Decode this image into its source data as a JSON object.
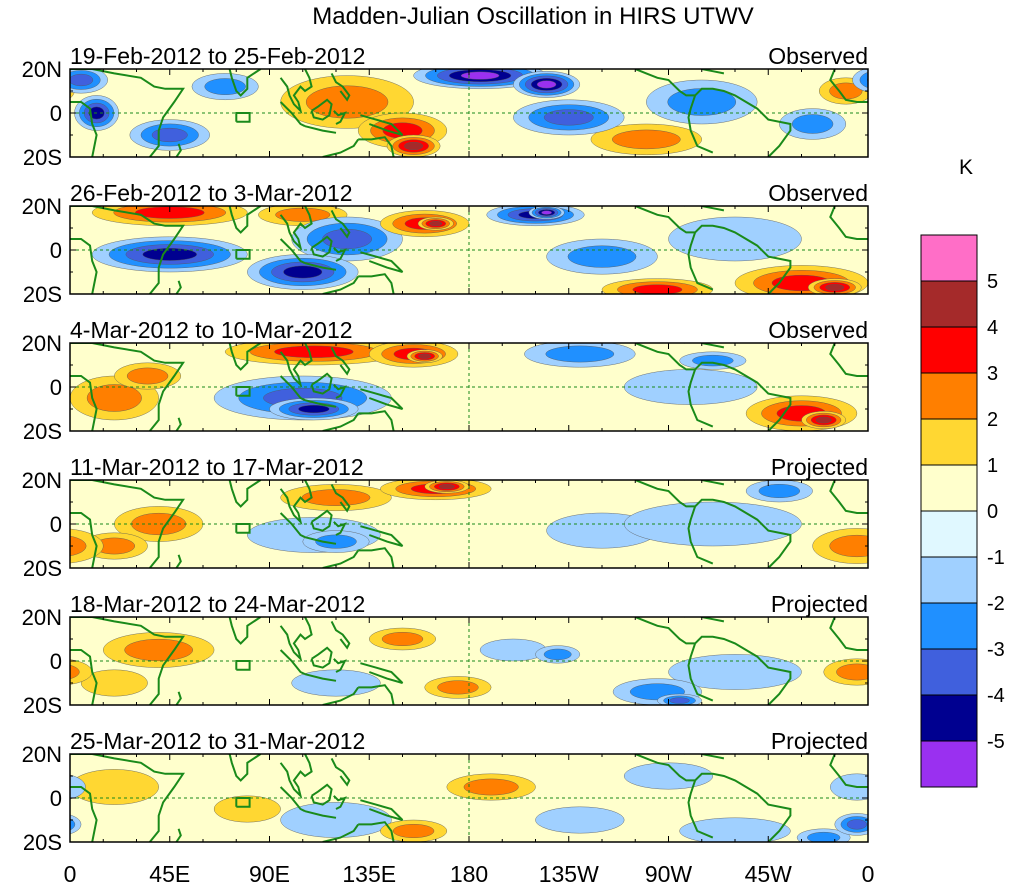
{
  "chart_data": {
    "type": "heatmap",
    "title": "Madden-Julian Oscillation in HIRS UTWV",
    "x_ticks": [
      "0",
      "45E",
      "90E",
      "135E",
      "180",
      "135W",
      "90W",
      "45W",
      "0"
    ],
    "y_ticks": [
      "20N",
      "0",
      "20S"
    ],
    "colorbar": {
      "unit": "K",
      "labels": [
        "5",
        "4",
        "3",
        "2",
        "1",
        "0",
        "-1",
        "-2",
        "-3",
        "-4",
        "-5"
      ],
      "colors": [
        "#ff6ec7",
        "#a52a2a",
        "#ff0000",
        "#ff7f00",
        "#ffd732",
        "#ffffcc",
        "#e0f8ff",
        "#a0d0ff",
        "#2090ff",
        "#4060dd",
        "#000090",
        "#9a30f0"
      ]
    },
    "panels": [
      {
        "period": "19-Feb-2012 to 25-Feb-2012",
        "status": "Observed",
        "blobs": [
          [
            12,
            0,
            10,
            8,
            -4
          ],
          [
            5,
            15,
            12,
            6,
            -3
          ],
          [
            45,
            -10,
            18,
            7,
            -3
          ],
          [
            70,
            12,
            15,
            6,
            -2
          ],
          [
            125,
            5,
            30,
            12,
            2
          ],
          [
            150,
            -8,
            20,
            8,
            3
          ],
          [
            155,
            -15,
            12,
            5,
            4
          ],
          [
            185,
            17,
            30,
            6,
            -5
          ],
          [
            215,
            13,
            15,
            6,
            -5
          ],
          [
            225,
            -2,
            25,
            8,
            -3
          ],
          [
            260,
            -12,
            25,
            7,
            2
          ],
          [
            285,
            5,
            25,
            10,
            -2
          ],
          [
            335,
            -5,
            15,
            7,
            -2
          ],
          [
            350,
            10,
            12,
            6,
            2
          ]
        ]
      },
      {
        "period": "26-Feb-2012 to 3-Mar-2012",
        "status": "Observed",
        "blobs": [
          [
            45,
            17,
            35,
            6,
            3
          ],
          [
            105,
            16,
            20,
            5,
            2
          ],
          [
            45,
            -2,
            35,
            8,
            -4
          ],
          [
            105,
            -10,
            25,
            8,
            -4
          ],
          [
            125,
            5,
            25,
            10,
            -3
          ],
          [
            160,
            12,
            20,
            6,
            3
          ],
          [
            165,
            12,
            8,
            3,
            4
          ],
          [
            210,
            16,
            22,
            5,
            -4
          ],
          [
            215,
            17,
            8,
            3,
            -5
          ],
          [
            240,
            -3,
            25,
            8,
            -2
          ],
          [
            265,
            -18,
            25,
            5,
            3
          ],
          [
            330,
            -15,
            30,
            8,
            3
          ],
          [
            345,
            -17,
            12,
            4,
            4
          ],
          [
            300,
            5,
            30,
            10,
            -1
          ]
        ]
      },
      {
        "period": "4-Mar-2012 to 10-Mar-2012",
        "status": "Observed",
        "blobs": [
          [
            110,
            16,
            40,
            6,
            3
          ],
          [
            155,
            15,
            20,
            6,
            3
          ],
          [
            160,
            14,
            8,
            3,
            4
          ],
          [
            105,
            -5,
            40,
            10,
            -3
          ],
          [
            110,
            -10,
            20,
            5,
            -4
          ],
          [
            20,
            -5,
            20,
            10,
            2
          ],
          [
            35,
            5,
            15,
            6,
            2
          ],
          [
            230,
            15,
            25,
            6,
            -2
          ],
          [
            330,
            -12,
            25,
            8,
            3
          ],
          [
            340,
            -15,
            10,
            4,
            4
          ],
          [
            280,
            0,
            30,
            8,
            -1
          ],
          [
            290,
            12,
            15,
            4,
            -2
          ]
        ]
      },
      {
        "period": "11-Mar-2012 to 17-Mar-2012",
        "status": "Projected",
        "blobs": [
          [
            165,
            16,
            25,
            5,
            3
          ],
          [
            170,
            17,
            10,
            3,
            4
          ],
          [
            120,
            12,
            25,
            6,
            2
          ],
          [
            110,
            -5,
            30,
            8,
            -1
          ],
          [
            120,
            -8,
            15,
            5,
            -2
          ],
          [
            40,
            0,
            20,
            8,
            2
          ],
          [
            20,
            -10,
            15,
            6,
            2
          ],
          [
            355,
            -10,
            20,
            8,
            2
          ],
          [
            240,
            -3,
            25,
            8,
            -1
          ],
          [
            320,
            15,
            15,
            5,
            -2
          ],
          [
            290,
            0,
            40,
            10,
            -1
          ]
        ]
      },
      {
        "period": "18-Mar-2012 to 24-Mar-2012",
        "status": "Projected",
        "blobs": [
          [
            40,
            5,
            25,
            8,
            2
          ],
          [
            150,
            10,
            15,
            5,
            2
          ],
          [
            200,
            5,
            15,
            5,
            -1
          ],
          [
            220,
            3,
            10,
            4,
            -2
          ],
          [
            265,
            -14,
            20,
            6,
            -2
          ],
          [
            275,
            -18,
            10,
            3,
            -3
          ],
          [
            300,
            -5,
            30,
            8,
            -1
          ],
          [
            20,
            -10,
            15,
            6,
            1
          ],
          [
            355,
            -5,
            15,
            6,
            2
          ],
          [
            120,
            -10,
            20,
            6,
            -1
          ],
          [
            175,
            -12,
            15,
            5,
            2
          ]
        ]
      },
      {
        "period": "25-Mar-2012 to 31-Mar-2012",
        "status": "Projected",
        "blobs": [
          [
            20,
            5,
            20,
            8,
            1
          ],
          [
            190,
            5,
            20,
            6,
            2
          ],
          [
            120,
            -10,
            25,
            8,
            -1
          ],
          [
            230,
            -10,
            20,
            6,
            -1
          ],
          [
            270,
            10,
            20,
            6,
            -1
          ],
          [
            300,
            -15,
            25,
            6,
            -1
          ],
          [
            340,
            -18,
            12,
            4,
            -2
          ],
          [
            355,
            -12,
            10,
            5,
            -3
          ],
          [
            355,
            5,
            12,
            6,
            -1
          ],
          [
            80,
            -5,
            15,
            6,
            1
          ],
          [
            155,
            -15,
            15,
            5,
            2
          ]
        ]
      }
    ]
  }
}
